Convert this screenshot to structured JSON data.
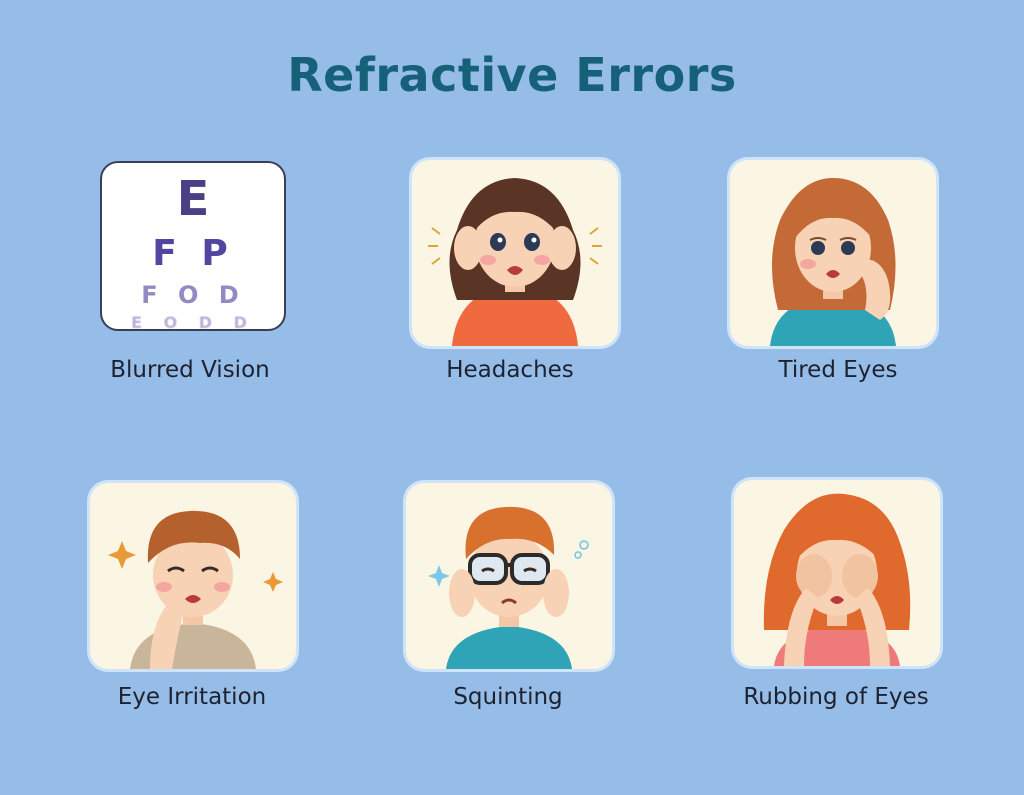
{
  "title": "Refractive Errors",
  "symptoms": [
    {
      "label": "Blurred Vision",
      "icon": "eye-chart-icon"
    },
    {
      "label": "Headaches",
      "icon": "headache-girl-icon"
    },
    {
      "label": "Tired Eyes",
      "icon": "tired-eyes-girl-icon"
    },
    {
      "label": "Eye Irritation",
      "icon": "irritated-eye-boy-icon"
    },
    {
      "label": "Squinting",
      "icon": "squinting-boy-icon"
    },
    {
      "label": "Rubbing of Eyes",
      "icon": "rubbing-eyes-girl-icon"
    }
  ],
  "eye_chart": {
    "rows": [
      "E",
      "F P",
      "F O D",
      "E O D D"
    ]
  },
  "colors": {
    "background": "#95bde8",
    "title": "#17607a",
    "card": "#fbf5e4"
  }
}
